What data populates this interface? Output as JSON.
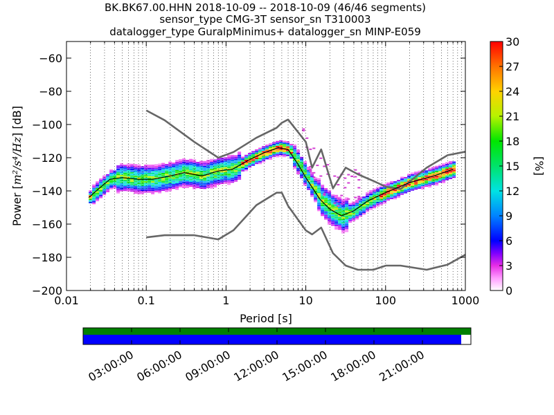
{
  "chart_data": {
    "type": "heatmap",
    "title_lines": [
      "BK.BK67.00.HHN   2018-10-09 -- 2018-10-09  (46/46 segments)",
      "sensor_type CMG-3T sensor_sn T310003",
      "datalogger_type GuralpMinimus+ datalogger_sn MINP-E059"
    ],
    "xlabel": "Period [s]",
    "ylabel_prefix": "Power [",
    "ylabel_math": "m²/s⁴/Hz",
    "ylabel_suffix": "] [dB]",
    "x_scale": "log",
    "xlim": [
      0.01,
      1000
    ],
    "ylim": [
      -200,
      -50
    ],
    "x_tick_labels": [
      "0.01",
      "0.1",
      "1",
      "10",
      "100",
      "1000"
    ],
    "y_ticks": [
      -200,
      -180,
      -160,
      -140,
      -120,
      -100,
      -80,
      -60
    ],
    "grid": "vertical dotted",
    "colorbar": {
      "label": "[%]",
      "range": [
        0,
        30
      ],
      "ticks": [
        "0",
        "3",
        "6",
        "9",
        "12",
        "15",
        "18",
        "21",
        "24",
        "27",
        "30"
      ]
    },
    "series": [
      {
        "name": "",
        "style": "high noise model",
        "color": "#666666",
        "period": [
          0.1,
          0.17,
          0.4,
          0.8,
          1.24,
          2.4,
          4.3,
          5,
          6,
          10,
          12,
          15.6,
          21.9,
          31.6,
          45,
          70,
          101,
          154,
          328,
          600,
          10000
        ],
        "power": [
          -91.5,
          -97.4,
          -110.5,
          -120,
          -116.6,
          -108,
          -102,
          -99,
          -97,
          -110.5,
          -126,
          -115,
          -138.5,
          -126,
          -130,
          -134,
          -137.5,
          -138.9,
          -126,
          -118.5,
          -107
        ]
      },
      {
        "name": "",
        "style": "low noise model",
        "color": "#666666",
        "period": [
          0.1,
          0.17,
          0.4,
          0.8,
          1.24,
          2.4,
          4.3,
          5,
          6,
          10,
          12,
          15.6,
          21.9,
          31.6,
          45,
          70,
          101,
          154,
          328,
          600,
          10000
        ],
        "power": [
          -168,
          -166.7,
          -166.7,
          -169.2,
          -163.7,
          -148.6,
          -141.1,
          -141.1,
          -149,
          -163.8,
          -166.2,
          -162.1,
          -177.5,
          -185,
          -187.5,
          -187.5,
          -185,
          -185,
          -187.5,
          -184.4,
          -151.5
        ]
      },
      {
        "name": "",
        "style": "median (black line)",
        "color": "#000000",
        "period": [
          0.019,
          0.025,
          0.035,
          0.05,
          0.08,
          0.12,
          0.2,
          0.3,
          0.5,
          0.8,
          1.2,
          2,
          3,
          4.5,
          6,
          8,
          10,
          15,
          20,
          28,
          40,
          60,
          100,
          200,
          400,
          700
        ],
        "power": [
          -144,
          -139,
          -133,
          -132,
          -133,
          -133,
          -131,
          -129,
          -131,
          -128,
          -127,
          -121,
          -117,
          -114,
          -115,
          -124,
          -132,
          -145,
          -151,
          -155,
          -152,
          -146,
          -141,
          -135,
          -131,
          -127
        ]
      }
    ],
    "time_axis": {
      "ticks": [
        "03:00:00",
        "06:00:00",
        "09:00:00",
        "12:00:00",
        "15:00:00",
        "18:00:00",
        "21:00:00"
      ],
      "bars": [
        {
          "name": "data availability",
          "color": "#008000",
          "coverage": 1.0
        },
        {
          "name": "psd segments",
          "color": "#0000ff",
          "coverage": 0.975
        }
      ]
    }
  }
}
